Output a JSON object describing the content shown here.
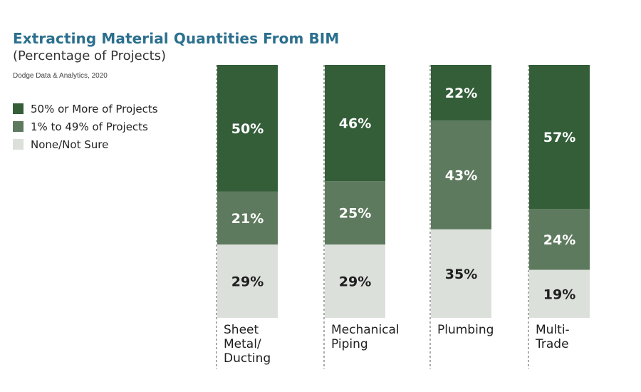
{
  "header": {
    "title": "Extracting Material Quantities From BIM",
    "subtitle": "(Percentage of Projects)",
    "source": "Dodge Data & Analytics, 2020"
  },
  "colors": {
    "series_high": "#335e38",
    "series_mid": "#5e7a5e",
    "series_none": "#dce0db",
    "label_light": "#ffffff",
    "label_dark": "#1e1e1e"
  },
  "chart_data": {
    "type": "bar",
    "stacked": true,
    "orientation": "vertical",
    "categories": [
      "Sheet Metal/ Ducting",
      "Mechanical Piping",
      "Plumbing",
      "Multi-Trade"
    ],
    "category_lines": [
      [
        "Sheet",
        "Metal/",
        "Ducting"
      ],
      [
        "Mechanical",
        "Piping"
      ],
      [
        "Plumbing"
      ],
      [
        "Multi-",
        "Trade"
      ]
    ],
    "series": [
      {
        "name": "None/Not Sure",
        "values": [
          29,
          29,
          35,
          19
        ]
      },
      {
        "name": "1% to 49% of Projects",
        "values": [
          21,
          25,
          43,
          24
        ]
      },
      {
        "name": "50% or More of Projects",
        "values": [
          50,
          46,
          22,
          57
        ]
      }
    ],
    "value_suffix": "%",
    "legend_position": "left",
    "grid": false,
    "ylim": [
      0,
      100
    ]
  }
}
